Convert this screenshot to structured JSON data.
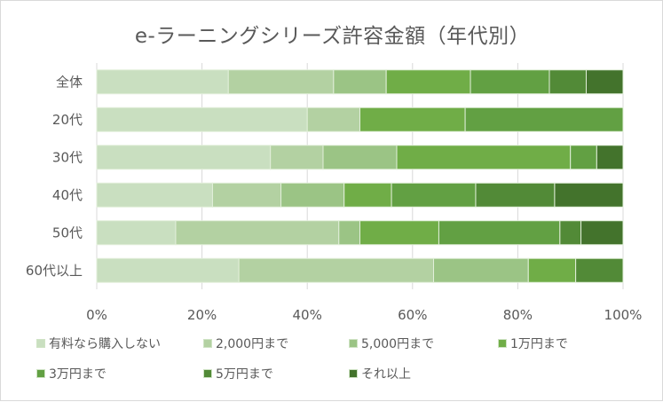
{
  "chart_data": {
    "type": "bar",
    "orientation": "horizontal",
    "stacked": true,
    "title": "e-ラーニングシリーズ許容金額（年代別）",
    "categories": [
      "全体",
      "20代",
      "30代",
      "40代",
      "50代",
      "60代以上"
    ],
    "x_ticks": [
      "0%",
      "20%",
      "40%",
      "60%",
      "80%",
      "100%"
    ],
    "xlim": [
      0,
      100
    ],
    "grid": true,
    "legend_position": "bottom",
    "series": [
      {
        "name": "有料なら購入しない",
        "color": "#c9dfc0",
        "values": [
          25,
          40,
          33,
          22,
          15,
          27
        ]
      },
      {
        "name": "2,000円まで",
        "color": "#b3d1a2",
        "values": [
          20,
          10,
          10,
          13,
          31,
          37
        ]
      },
      {
        "name": "5,000円まで",
        "color": "#9bc485",
        "values": [
          10,
          0,
          14,
          12,
          4,
          18
        ]
      },
      {
        "name": "1万円まで",
        "color": "#70ad47",
        "values": [
          16,
          20,
          33,
          9,
          15,
          9
        ]
      },
      {
        "name": "3万円まで",
        "color": "#62a043",
        "values": [
          15,
          30,
          5,
          16,
          23,
          0
        ]
      },
      {
        "name": "5万円まで",
        "color": "#528a37",
        "values": [
          7,
          0,
          0,
          15,
          4,
          9
        ]
      },
      {
        "name": "それ以上",
        "color": "#43732c",
        "values": [
          7,
          0,
          5,
          13,
          8,
          0
        ]
      }
    ]
  }
}
